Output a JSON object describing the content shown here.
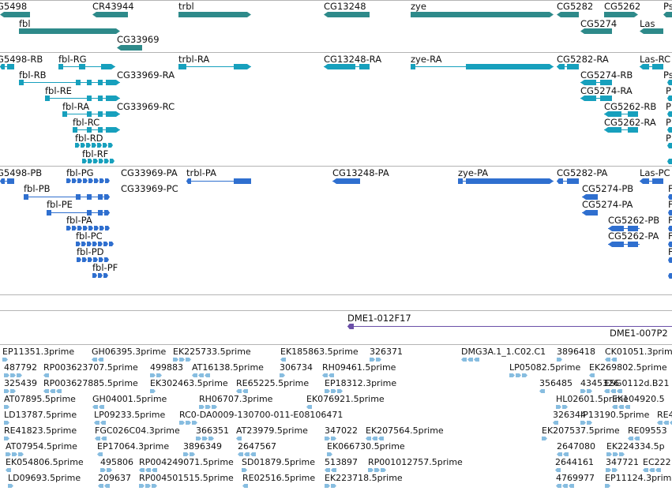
{
  "colors": {
    "gene": "#2e8a8a",
    "rna": "#17a0bd",
    "protein": "#2f6fcf",
    "clone": "#6b4fa8",
    "est": "#87bde0",
    "separator": "#b4b4b4",
    "text": "#111111"
  },
  "genes": [
    {
      "label": "G5498"
    },
    {
      "label": "CR43944"
    },
    {
      "label": "trbl"
    },
    {
      "label": "CG13248"
    },
    {
      "label": "zye"
    },
    {
      "label": "CG5282"
    },
    {
      "label": "CG5262"
    },
    {
      "label": "Ps"
    },
    {
      "label": "fbl"
    },
    {
      "label": "CG5274"
    },
    {
      "label": "Las"
    },
    {
      "label": "CG33969"
    }
  ],
  "transcripts": [
    {
      "label": "G5498-RB"
    },
    {
      "label": "fbl-RG"
    },
    {
      "label": "trbl-RA"
    },
    {
      "label": "CG13248-RA"
    },
    {
      "label": "zye-RA"
    },
    {
      "label": "CG5282-RA"
    },
    {
      "label": "Las-RC"
    },
    {
      "label": "fbl-RB"
    },
    {
      "label": "CG33969-RA"
    },
    {
      "label": "CG5274-RB"
    },
    {
      "label": "Ps"
    },
    {
      "label": "fbl-RE"
    },
    {
      "label": "CG5274-RA"
    },
    {
      "label": "P"
    },
    {
      "label": "fbl-RA"
    },
    {
      "label": "CG33969-RC"
    },
    {
      "label": "CG5262-RB"
    },
    {
      "label": "P"
    },
    {
      "label": "fbl-RC"
    },
    {
      "label": "CG5262-RA"
    },
    {
      "label": "P"
    },
    {
      "label": "fbl-RD"
    },
    {
      "label": "P"
    },
    {
      "label": "fbl-RF"
    }
  ],
  "proteins": [
    {
      "label": "G5498-PB"
    },
    {
      "label": "fbl-PG"
    },
    {
      "label": "CG33969-PA"
    },
    {
      "label": "trbl-PA"
    },
    {
      "label": "CG13248-PA"
    },
    {
      "label": "zye-PA"
    },
    {
      "label": "CG5282-PA"
    },
    {
      "label": "Las-PC"
    },
    {
      "label": "fbl-PB"
    },
    {
      "label": "CG33969-PC"
    },
    {
      "label": "CG5274-PB"
    },
    {
      "label": "fbl-PE"
    },
    {
      "label": "CG5274-PA"
    },
    {
      "label": "fbl-PA"
    },
    {
      "label": "CG5262-PB"
    },
    {
      "label": "fbl-PC"
    },
    {
      "label": "CG5262-PA"
    },
    {
      "label": "fbl-PD"
    },
    {
      "label": "fbl-PF"
    },
    {
      "label": "F"
    },
    {
      "label": "F"
    },
    {
      "label": "F"
    },
    {
      "label": "F"
    },
    {
      "label": "F"
    }
  ],
  "clones": [
    {
      "label": "DME1-012F17"
    },
    {
      "label": "DME1-007P2"
    }
  ],
  "ests": [
    {
      "label": "EP11351.3prime"
    },
    {
      "label": "GH06395.3prime"
    },
    {
      "label": "EK225733.5prime"
    },
    {
      "label": "EK185863.5prime"
    },
    {
      "label": "326371"
    },
    {
      "label": "DMG3A.1_1.C02.C1"
    },
    {
      "label": "3896418"
    },
    {
      "label": "CK01051.3prime"
    },
    {
      "label": "487792"
    },
    {
      "label": "RP003623707.5prime"
    },
    {
      "label": "499883"
    },
    {
      "label": "AT16138.5prime"
    },
    {
      "label": "306734"
    },
    {
      "label": "RH09461.5prime"
    },
    {
      "label": "LP05082.5prime"
    },
    {
      "label": "EK269802.5prime"
    },
    {
      "label": "325439"
    },
    {
      "label": "RP003627885.5prime"
    },
    {
      "label": "EK302463.5prime"
    },
    {
      "label": "RE65225.5prime"
    },
    {
      "label": "EP18312.3prime"
    },
    {
      "label": "356485"
    },
    {
      "label": "4345326"
    },
    {
      "label": "ESG0112d.B21"
    },
    {
      "label": "AT07895.5prime"
    },
    {
      "label": "GH04001.5prime"
    },
    {
      "label": "RH06707.3prime"
    },
    {
      "label": "EK076921.5prime"
    },
    {
      "label": "HL02601.5prime"
    },
    {
      "label": "EK104920.5"
    },
    {
      "label": "LD13787.5prime"
    },
    {
      "label": "LP09233.5prime"
    },
    {
      "label": "RC0-DA0009-130700-011-E08106471"
    },
    {
      "label": "326344"
    },
    {
      "label": "IP13190.5prime"
    },
    {
      "label": "RE4"
    },
    {
      "label": "RE41823.5prime"
    },
    {
      "label": "FGC026C04.3prime"
    },
    {
      "label": "366351"
    },
    {
      "label": "AT23979.5prime"
    },
    {
      "label": "347022"
    },
    {
      "label": "EK207564.5prime"
    },
    {
      "label": "EK207537.5prime"
    },
    {
      "label": "RE09553"
    },
    {
      "label": "AT07954.5prime"
    },
    {
      "label": "EP17064.3prime"
    },
    {
      "label": "3896349"
    },
    {
      "label": "2647567"
    },
    {
      "label": "EK066730.5prime"
    },
    {
      "label": "2647080"
    },
    {
      "label": "EK224334.5p"
    },
    {
      "label": "EK054806.5prime"
    },
    {
      "label": "495806"
    },
    {
      "label": "RP004249071.5prime"
    },
    {
      "label": "SD01879.5prime"
    },
    {
      "label": "513897"
    },
    {
      "label": "RP001012757.5prime"
    },
    {
      "label": "2644161"
    },
    {
      "label": "347721"
    },
    {
      "label": "EC222"
    },
    {
      "label": "LD09693.5prime"
    },
    {
      "label": "209637"
    },
    {
      "label": "RP004501515.5prime"
    },
    {
      "label": "RE02516.5prime"
    },
    {
      "label": "EK223718.5prime"
    },
    {
      "label": "4769977"
    },
    {
      "label": "EP11124.3prime"
    }
  ]
}
